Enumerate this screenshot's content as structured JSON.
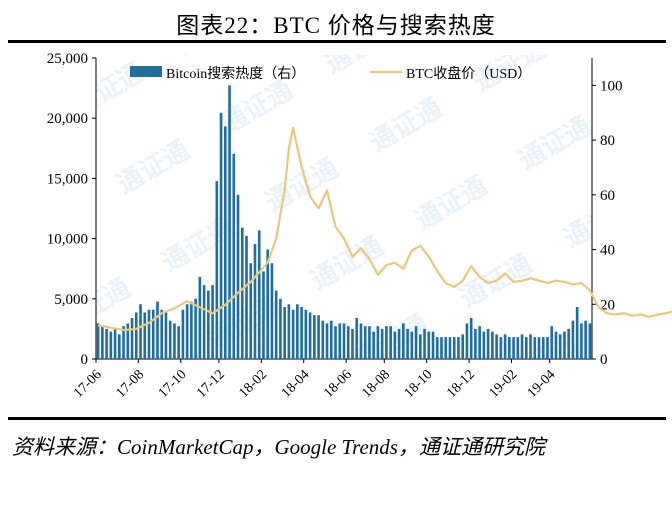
{
  "title": "图表22：BTC 价格与搜索热度",
  "source": "资料来源：CoinMarketCap，Google Trends，通证通研究院",
  "chart_data": {
    "type": "bar+line",
    "legend": {
      "placement": "top"
    },
    "x_tick_labels": [
      "17-06",
      "17-08",
      "17-10",
      "17-12",
      "18-02",
      "18-04",
      "18-06",
      "18-08",
      "18-10",
      "18-12",
      "19-02",
      "19-04"
    ],
    "y_left": {
      "ticks": [
        "0",
        "5,000",
        "10,000",
        "15,000",
        "20,000",
        "25,000"
      ],
      "ylim": [
        0,
        25000
      ]
    },
    "y_right": {
      "ticks": [
        "0",
        "20",
        "40",
        "60",
        "80",
        "100"
      ],
      "ylim": [
        0,
        110
      ]
    },
    "series": [
      {
        "name": "Bitcoin搜索热度（右）",
        "type": "bar",
        "axis": "right",
        "color": "#1f6e9c",
        "values": [
          13,
          12,
          11,
          10,
          11,
          9,
          12,
          13,
          15,
          17,
          20,
          17,
          18,
          18,
          21,
          18,
          17,
          14,
          13,
          12,
          18,
          20,
          21,
          22,
          30,
          27,
          25,
          27,
          65,
          90,
          85,
          100,
          75,
          60,
          48,
          45,
          35,
          42,
          47,
          32,
          40,
          35,
          25,
          22,
          19,
          20,
          18,
          20,
          19,
          18,
          17,
          16,
          16,
          14,
          13,
          14,
          12,
          13,
          13,
          12,
          11,
          15,
          13,
          12,
          12,
          10,
          12,
          11,
          12,
          12,
          10,
          11,
          13,
          11,
          10,
          12,
          9,
          11,
          10,
          10,
          8,
          8,
          8,
          8,
          8,
          8,
          9,
          13,
          15,
          11,
          12,
          10,
          11,
          10,
          9,
          8,
          9,
          8,
          8,
          8,
          9,
          8,
          9,
          8,
          8,
          8,
          8,
          12,
          10,
          9,
          10,
          11,
          14,
          19,
          13,
          14,
          13
        ]
      },
      {
        "name": "BTC收盘价（USD）",
        "type": "line",
        "axis": "left",
        "color": "#e8c982",
        "x": [
          0,
          3,
          6,
          9,
          12,
          15,
          18,
          21,
          24,
          27,
          30,
          33,
          36,
          38,
          40,
          42,
          44,
          45,
          46,
          48,
          50,
          52,
          54,
          56,
          58,
          60,
          62,
          64,
          66,
          68,
          70,
          72,
          74,
          76,
          78,
          80,
          82,
          84,
          86,
          88,
          90,
          92,
          94,
          96,
          98,
          100,
          102,
          104,
          106,
          108,
          110,
          112,
          114,
          116,
          118,
          120,
          122,
          124,
          126,
          128,
          130,
          132,
          134,
          136,
          138,
          140,
          142,
          144,
          146,
          148,
          150,
          152,
          154,
          156,
          158,
          160,
          162,
          164,
          166,
          168,
          170,
          172,
          174,
          176,
          178,
          180,
          182,
          184,
          186,
          188,
          190,
          192,
          194,
          196,
          198
        ],
        "values": [
          2800,
          2600,
          2400,
          2500,
          3000,
          3800,
          4200,
          4800,
          4300,
          3800,
          4500,
          5500,
          6400,
          7200,
          8000,
          10000,
          14000,
          17500,
          19200,
          16000,
          13500,
          12500,
          14000,
          11000,
          10000,
          8500,
          9200,
          8300,
          7000,
          7800,
          8000,
          7500,
          9000,
          9400,
          8500,
          7300,
          6300,
          6000,
          6500,
          7700,
          6800,
          6300,
          6500,
          7100,
          6400,
          6500,
          6700,
          6500,
          6300,
          6500,
          6400,
          6200,
          6300,
          5700,
          4300,
          3800,
          3700,
          3800,
          3600,
          3700,
          3500,
          3700,
          3800,
          4000,
          3900,
          4000,
          4100,
          5000,
          5200,
          5600,
          6000,
          7100,
          8100,
          8600,
          8000,
          9500,
          9000,
          8400,
          8200,
          8100,
          8000,
          7900,
          7800,
          8000,
          7600,
          7400,
          7200,
          6900,
          6600,
          6400,
          6200,
          6000,
          5800,
          5600,
          5400
        ]
      }
    ]
  }
}
